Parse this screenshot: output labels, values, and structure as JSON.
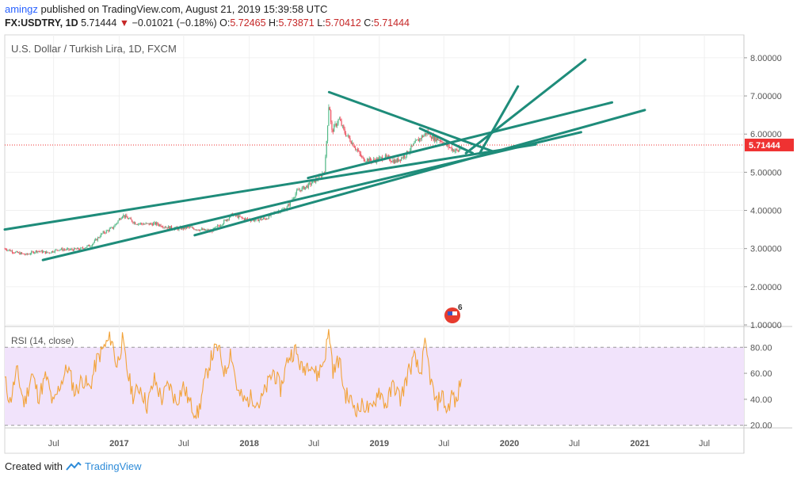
{
  "header": {
    "user": "amingz",
    "publish_text": "published on TradingView.com, August 21, 2019 15:39:58 UTC",
    "symbol": "FX:USDTRY, 1D",
    "last": "5.71444",
    "change_arrow": "▼",
    "change": "−0.01021 (−0.18%)",
    "o_label": "O:",
    "o_value": "5.72465",
    "h_label": "H:",
    "h_value": "5.73871",
    "l_label": "L:",
    "l_value": "5.70412",
    "c_label": "C:",
    "c_value": "5.71444"
  },
  "footer": {
    "created_with": "Created with",
    "brand": "TradingView"
  },
  "colors": {
    "candle_up": "#53b987",
    "candle_down": "#eb4d5c",
    "trendline": "#1e8c7a",
    "rsi_line": "#f2a33a",
    "rsi_band": "#f1e3fb",
    "price_label_bg": "#ef3232",
    "grid": "#f0f0f0"
  },
  "chart_data": [
    {
      "type": "candlestick",
      "title": "U.S. Dollar / Turkish Lira, 1D, FXCM",
      "interval": "1D",
      "y_axis_ticks": [
        "1.00000",
        "2.00000",
        "3.00000",
        "4.00000",
        "5.00000",
        "6.00000",
        "7.00000",
        "8.00000"
      ],
      "ylim": [
        1.0,
        8.6
      ],
      "x_axis_ticks": [
        "Jul",
        "2017",
        "Jul",
        "2018",
        "Jul",
        "2019",
        "Jul",
        "2020",
        "Jul",
        "2021",
        "Jul"
      ],
      "x_tick_dates": [
        "2016-07-01",
        "2017-01-01",
        "2017-07-01",
        "2018-01-01",
        "2018-07-01",
        "2019-01-01",
        "2019-07-01",
        "2020-01-01",
        "2020-07-01",
        "2021-01-01",
        "2021-07-01"
      ],
      "xlim": [
        "2016-02-15",
        "2021-10-20"
      ],
      "last_price": 5.71444,
      "last_price_label": "5.71444",
      "price_path": [
        [
          "2016-02-15",
          3.0
        ],
        [
          "2016-03-15",
          2.9
        ],
        [
          "2016-04-15",
          2.84
        ],
        [
          "2016-05-15",
          2.94
        ],
        [
          "2016-06-15",
          2.89
        ],
        [
          "2016-07-15",
          2.98
        ],
        [
          "2016-08-15",
          2.97
        ],
        [
          "2016-09-15",
          2.99
        ],
        [
          "2016-10-15",
          3.1
        ],
        [
          "2016-11-15",
          3.4
        ],
        [
          "2016-12-15",
          3.55
        ],
        [
          "2017-01-10",
          3.88
        ],
        [
          "2017-02-15",
          3.67
        ],
        [
          "2017-03-15",
          3.64
        ],
        [
          "2017-04-15",
          3.65
        ],
        [
          "2017-05-15",
          3.56
        ],
        [
          "2017-06-15",
          3.52
        ],
        [
          "2017-07-15",
          3.55
        ],
        [
          "2017-08-15",
          3.5
        ],
        [
          "2017-09-15",
          3.45
        ],
        [
          "2017-10-15",
          3.65
        ],
        [
          "2017-11-15",
          3.9
        ],
        [
          "2017-12-15",
          3.78
        ],
        [
          "2018-01-15",
          3.75
        ],
        [
          "2018-02-15",
          3.78
        ],
        [
          "2018-03-15",
          3.95
        ],
        [
          "2018-04-15",
          4.05
        ],
        [
          "2018-05-15",
          4.5
        ],
        [
          "2018-06-15",
          4.65
        ],
        [
          "2018-07-15",
          4.85
        ],
        [
          "2018-08-01",
          5.05
        ],
        [
          "2018-08-13",
          6.9
        ],
        [
          "2018-08-20",
          6.05
        ],
        [
          "2018-09-10",
          6.4
        ],
        [
          "2018-09-25",
          6.05
        ],
        [
          "2018-10-15",
          5.8
        ],
        [
          "2018-11-15",
          5.35
        ],
        [
          "2018-12-15",
          5.3
        ],
        [
          "2019-01-15",
          5.4
        ],
        [
          "2019-02-15",
          5.28
        ],
        [
          "2019-03-15",
          5.45
        ],
        [
          "2019-04-15",
          5.8
        ],
        [
          "2019-05-15",
          6.05
        ],
        [
          "2019-06-01",
          5.9
        ],
        [
          "2019-06-20",
          5.85
        ],
        [
          "2019-07-10",
          5.7
        ],
        [
          "2019-07-25",
          5.6
        ],
        [
          "2019-08-10",
          5.55
        ],
        [
          "2019-08-21",
          5.71
        ]
      ],
      "trendlines": [
        [
          [
            "2016-02-15",
            3.5
          ],
          [
            "2020-03-15",
            5.73
          ]
        ],
        [
          [
            "2016-06-01",
            2.7
          ],
          [
            "2020-07-20",
            6.05
          ]
        ],
        [
          [
            "2017-08-01",
            3.35
          ],
          [
            "2021-01-15",
            6.63
          ]
        ],
        [
          [
            "2018-08-13",
            7.1
          ],
          [
            "2019-11-15",
            5.55
          ]
        ],
        [
          [
            "2018-06-15",
            4.85
          ],
          [
            "2020-10-15",
            6.83
          ]
        ],
        [
          [
            "2019-09-01",
            5.5
          ],
          [
            "2020-08-01",
            7.95
          ]
        ],
        [
          [
            "2019-10-10",
            5.5
          ],
          [
            "2020-01-25",
            7.25
          ]
        ],
        [
          [
            "2019-04-25",
            6.15
          ],
          [
            "2019-09-20",
            5.5
          ]
        ]
      ],
      "event_badge": {
        "date": "2019-07-25",
        "label": "6"
      }
    },
    {
      "type": "line",
      "title": "RSI (14, close)",
      "y_axis_ticks": [
        "20.00",
        "40.00",
        "60.00",
        "80.00"
      ],
      "ylim": [
        18,
        96
      ],
      "band": [
        30,
        70
      ],
      "band_lines": [
        20,
        80
      ],
      "xlim": [
        "2016-02-15",
        "2021-10-20"
      ],
      "series": [
        {
          "values_path": [
            [
              "2016-02-15",
              55
            ],
            [
              "2016-03-01",
              38
            ],
            [
              "2016-03-20",
              62
            ],
            [
              "2016-04-10",
              36
            ],
            [
              "2016-05-01",
              60
            ],
            [
              "2016-05-20",
              42
            ],
            [
              "2016-06-10",
              58
            ],
            [
              "2016-06-30",
              35
            ],
            [
              "2016-07-20",
              52
            ],
            [
              "2016-08-10",
              65
            ],
            [
              "2016-08-30",
              45
            ],
            [
              "2016-09-20",
              56
            ],
            [
              "2016-10-10",
              48
            ],
            [
              "2016-10-30",
              70
            ],
            [
              "2016-11-20",
              80
            ],
            [
              "2016-12-10",
              88
            ],
            [
              "2016-12-25",
              65
            ],
            [
              "2017-01-10",
              85
            ],
            [
              "2017-01-25",
              60
            ],
            [
              "2017-02-10",
              42
            ],
            [
              "2017-03-01",
              50
            ],
            [
              "2017-03-20",
              35
            ],
            [
              "2017-04-10",
              55
            ],
            [
              "2017-05-01",
              40
            ],
            [
              "2017-05-20",
              52
            ],
            [
              "2017-06-10",
              38
            ],
            [
              "2017-06-30",
              50
            ],
            [
              "2017-07-20",
              36
            ],
            [
              "2017-08-10",
              28
            ],
            [
              "2017-08-30",
              55
            ],
            [
              "2017-09-20",
              75
            ],
            [
              "2017-10-05",
              80
            ],
            [
              "2017-10-25",
              60
            ],
            [
              "2017-11-10",
              78
            ],
            [
              "2017-11-30",
              45
            ],
            [
              "2017-12-20",
              38
            ],
            [
              "2018-01-10",
              42
            ],
            [
              "2018-01-30",
              36
            ],
            [
              "2018-02-20",
              50
            ],
            [
              "2018-03-10",
              62
            ],
            [
              "2018-03-30",
              48
            ],
            [
              "2018-04-20",
              72
            ],
            [
              "2018-05-10",
              78
            ],
            [
              "2018-05-30",
              62
            ],
            [
              "2018-06-20",
              70
            ],
            [
              "2018-07-10",
              58
            ],
            [
              "2018-07-30",
              70
            ],
            [
              "2018-08-13",
              93
            ],
            [
              "2018-08-25",
              60
            ],
            [
              "2018-09-10",
              72
            ],
            [
              "2018-09-25",
              45
            ],
            [
              "2018-10-15",
              38
            ],
            [
              "2018-11-01",
              32
            ],
            [
              "2018-11-20",
              36
            ],
            [
              "2018-12-10",
              30
            ],
            [
              "2018-12-30",
              48
            ],
            [
              "2019-01-20",
              35
            ],
            [
              "2019-02-10",
              52
            ],
            [
              "2019-03-01",
              40
            ],
            [
              "2019-03-25",
              62
            ],
            [
              "2019-04-10",
              72
            ],
            [
              "2019-04-25",
              58
            ],
            [
              "2019-05-10",
              82
            ],
            [
              "2019-05-25",
              55
            ],
            [
              "2019-06-10",
              35
            ],
            [
              "2019-06-25",
              45
            ],
            [
              "2019-07-10",
              30
            ],
            [
              "2019-07-25",
              45
            ],
            [
              "2019-08-05",
              35
            ],
            [
              "2019-08-15",
              52
            ],
            [
              "2019-08-21",
              60
            ]
          ]
        }
      ]
    }
  ]
}
